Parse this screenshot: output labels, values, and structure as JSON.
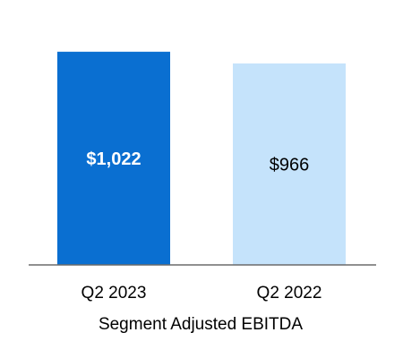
{
  "chart_data": {
    "type": "bar",
    "categories": [
      "Q2 2023",
      "Q2 2022"
    ],
    "values": [
      1022,
      966
    ],
    "data_labels": [
      "$1,022",
      "$966"
    ],
    "bar_colors": [
      "#0a6fd1",
      "#c5e3fb"
    ],
    "label_colors": [
      "#ffffff",
      "#000000"
    ],
    "label_bold": [
      true,
      false
    ],
    "axis_color": "#6b6b6b",
    "title": "",
    "xlabel": "Segment Adjusted EBITDA",
    "ylabel": "",
    "ylim": [
      0,
      1270
    ],
    "grid": false,
    "legend": "none"
  }
}
